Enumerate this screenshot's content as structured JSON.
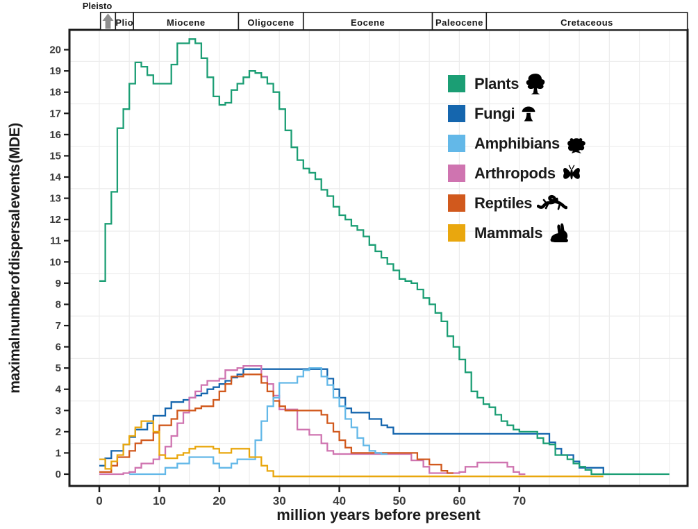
{
  "figure": {
    "pleisto_label": "Pleisto",
    "x_axis_label": "million years before present",
    "y_axis_label": "maximal number of dispersal events (MDE)"
  },
  "timeline_periods": [
    {
      "name": "pleistocene",
      "label": "",
      "from": 0.2,
      "to": 2.7
    },
    {
      "name": "pliocene",
      "label": "Plio",
      "from": 2.7,
      "to": 5.7
    },
    {
      "name": "miocene",
      "label": "Miocene",
      "from": 5.7,
      "to": 23.2
    },
    {
      "name": "oligocene",
      "label": "Oligocene",
      "from": 23.2,
      "to": 34.0
    },
    {
      "name": "eocene",
      "label": "Eocene",
      "from": 34.0,
      "to": 55.5
    },
    {
      "name": "paleocene",
      "label": "Paleocene",
      "from": 55.5,
      "to": 64.5
    },
    {
      "name": "cretaceous",
      "label": "Cretaceous",
      "from": 64.5,
      "to": 98.0
    }
  ],
  "axes": {
    "x_ticks": [
      0,
      10,
      20,
      30,
      40,
      50,
      60,
      70
    ],
    "y_ticks": [
      0,
      1,
      2,
      3,
      4,
      5,
      6,
      7,
      8,
      9,
      10,
      11,
      12,
      13,
      14,
      15,
      16,
      17,
      18,
      19,
      20
    ]
  },
  "legend": {
    "entries": [
      {
        "label": "Plants",
        "color": "#1b9e74",
        "icon": "tree-icon"
      },
      {
        "label": "Fungi",
        "color": "#1566ae",
        "icon": "mushroom-icon"
      },
      {
        "label": "Amphibians",
        "color": "#63b8e8",
        "icon": "frog-icon"
      },
      {
        "label": "Arthropods",
        "color": "#cf74b0",
        "icon": "butterfly-icon"
      },
      {
        "label": "Reptiles",
        "color": "#d1591d",
        "icon": "lizard-icon"
      },
      {
        "label": "Mammals",
        "color": "#e9a70e",
        "icon": "rabbit-icon"
      }
    ]
  },
  "chart_data": {
    "type": "line",
    "subtype": "step",
    "title": "",
    "xlabel": "million years before present",
    "ylabel": "maximal number of dispersal events (MDE)",
    "xlim": [
      -5,
      98
    ],
    "ylim": [
      0,
      20.5
    ],
    "bin_width_myr": 1,
    "grid": true,
    "legend_position": "upper right",
    "series": [
      {
        "name": "Fungi",
        "color": "#1566ae",
        "start": 0,
        "values": [
          0.4,
          0.75,
          1.1,
          1.1,
          1.4,
          1.75,
          2.1,
          2.1,
          2.4,
          2.75,
          2.75,
          3.1,
          3.4,
          3.4,
          3.5,
          3.6,
          3.7,
          3.8,
          4.0,
          4.1,
          4.25,
          4.4,
          4.55,
          4.7,
          4.95,
          4.95,
          4.95,
          4.95,
          4.95,
          4.95,
          4.95,
          4.95,
          4.95,
          4.95,
          4.95,
          4.95,
          4.95,
          4.95,
          4.5,
          4.0,
          3.6,
          3.1,
          2.9,
          2.9,
          2.9,
          2.6,
          2.6,
          2.3,
          2.2,
          1.9,
          1.9,
          1.9,
          1.9,
          1.9,
          1.9,
          1.9,
          1.9,
          1.9,
          1.9,
          1.9,
          1.9,
          1.9,
          1.9,
          1.9,
          1.9,
          1.9,
          1.9,
          1.9,
          1.9,
          1.9,
          1.9,
          1.9,
          1.9,
          1.9,
          1.9,
          1.5,
          1.2,
          0.9,
          0.9,
          0.6,
          0.3,
          0.3,
          0.3,
          0.3,
          0
        ]
      },
      {
        "name": "Arthropods",
        "color": "#cf74b0",
        "start": 0,
        "values": [
          0,
          0,
          0,
          0,
          0.05,
          0.1,
          0.3,
          0.5,
          0.5,
          0.7,
          0.9,
          1.3,
          1.8,
          2.4,
          2.9,
          3.6,
          3.9,
          4.2,
          4.4,
          4.4,
          4.5,
          4.9,
          4.9,
          5.0,
          5.1,
          5.1,
          5.1,
          4.6,
          4.25,
          3.7,
          3.05,
          3.05,
          3.05,
          2.1,
          2.1,
          1.85,
          1.85,
          1.45,
          1.1,
          0.95,
          0.95,
          0.95,
          0.95,
          0.95,
          0.95,
          0.95,
          0.95,
          0.95,
          0.95,
          0.95,
          0.95,
          0.95,
          0.65,
          0.65,
          0.35,
          0.05,
          0.05,
          0.05,
          0.05,
          0.05,
          0.1,
          0.35,
          0.35,
          0.55,
          0.55,
          0.55,
          0.55,
          0.55,
          0.35,
          0.1,
          0
        ]
      },
      {
        "name": "Reptiles",
        "color": "#d1591d",
        "start": 0,
        "values": [
          0.1,
          0.1,
          0.4,
          0.8,
          0.8,
          1.1,
          1.45,
          1.6,
          1.6,
          1.95,
          2.3,
          2.3,
          2.6,
          3.0,
          3.0,
          3.0,
          3.1,
          3.2,
          3.2,
          3.5,
          3.9,
          4.25,
          4.6,
          4.6,
          4.7,
          4.7,
          4.7,
          4.3,
          3.9,
          3.45,
          3.2,
          3.0,
          3.0,
          3.0,
          3.0,
          3.0,
          3.0,
          2.8,
          2.4,
          2.0,
          1.6,
          1.25,
          1.0,
          1.0,
          1.0,
          1.0,
          1.0,
          1.0,
          1.0,
          1.0,
          1.0,
          1.0,
          1.0,
          0.7,
          0.7,
          0.45,
          0.45,
          0.16,
          0.05
        ]
      },
      {
        "name": "Amphibians",
        "color": "#63b8e8",
        "start": 5,
        "values": [
          0,
          0,
          0,
          0,
          0,
          0,
          0.3,
          0.3,
          0.5,
          0.5,
          0.8,
          0.8,
          0.8,
          0.8,
          0.5,
          0.3,
          0.3,
          0.5,
          0.7,
          0.7,
          0.7,
          1.6,
          2.5,
          3.2,
          3.6,
          4.3,
          4.3,
          4.3,
          4.6,
          4.9,
          5.0,
          5.0,
          4.6,
          4.2,
          3.6,
          3.2,
          2.6,
          2.2,
          1.7,
          1.35,
          1.1,
          1.0,
          0.95
        ]
      },
      {
        "name": "Mammals",
        "color": "#e9a70e",
        "start": 0,
        "zero_dy": 3.2,
        "values": [
          0.7,
          0.25,
          0.6,
          0.9,
          1.4,
          1.8,
          2.2,
          2.5,
          2.5,
          2.0,
          0.9,
          0.75,
          0.75,
          0.9,
          1.0,
          1.2,
          1.3,
          1.3,
          1.3,
          1.2,
          1.0,
          1.0,
          1.2,
          1.2,
          1.2,
          0.8,
          0.8,
          0.4,
          0.15,
          0,
          0,
          0,
          0,
          0,
          0,
          0,
          0,
          0,
          0,
          0,
          0,
          0,
          0,
          0,
          0,
          0,
          0,
          0,
          0,
          0,
          0,
          0,
          0,
          0,
          0,
          0,
          0,
          0,
          0,
          0,
          0,
          0,
          0,
          0,
          0,
          0,
          0,
          0,
          0,
          0,
          0,
          0,
          0,
          0,
          0,
          0,
          0,
          0,
          0,
          0,
          0,
          0,
          0,
          0
        ]
      },
      {
        "name": "Plants",
        "color": "#1b9e74",
        "start": 0,
        "values": [
          9.1,
          11.8,
          13.3,
          16.3,
          17.2,
          18.4,
          19.4,
          19.2,
          18.8,
          18.4,
          18.4,
          18.4,
          19.3,
          20.3,
          20.3,
          20.5,
          20.3,
          19.6,
          18.7,
          17.8,
          17.4,
          17.5,
          18.1,
          18.4,
          18.7,
          19.0,
          18.9,
          18.7,
          18.4,
          18.0,
          17.2,
          16.2,
          15.4,
          14.8,
          14.4,
          14.2,
          13.9,
          13.4,
          13.1,
          12.6,
          12.2,
          12.0,
          11.7,
          11.5,
          11.2,
          10.8,
          10.5,
          10.2,
          9.9,
          9.6,
          9.2,
          9.1,
          9.0,
          8.7,
          8.3,
          8.0,
          7.6,
          7.2,
          6.5,
          6.0,
          5.4,
          4.8,
          3.9,
          3.6,
          3.3,
          3.15,
          2.8,
          2.5,
          2.3,
          2.1,
          2.0,
          2.0,
          2.0,
          1.7,
          1.45,
          1.4,
          0.9,
          0.9,
          0.7,
          0.5,
          0.35,
          0.2,
          0,
          0,
          0,
          0,
          0,
          0,
          0,
          0,
          0,
          0,
          0,
          0,
          0
        ]
      }
    ]
  }
}
